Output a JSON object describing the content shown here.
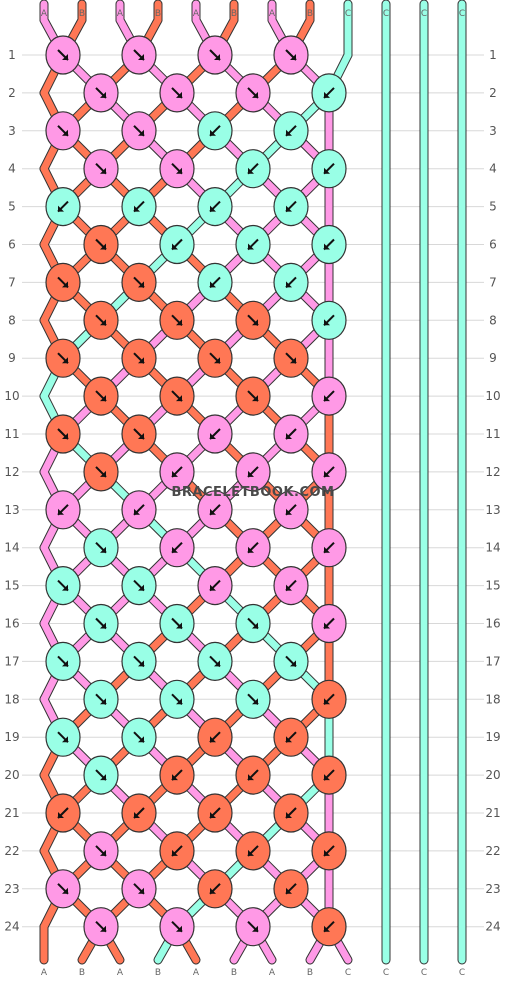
{
  "watermark": "BRACELETBOOK.COM",
  "colors": {
    "A": "#ff99e6",
    "B": "#ff7755",
    "C": "#99ffe6"
  },
  "strands_top": [
    "A",
    "B",
    "A",
    "B",
    "A",
    "B",
    "A",
    "B",
    "C",
    "C",
    "C",
    "C"
  ],
  "strands_bottom": [
    "A",
    "B",
    "A",
    "B",
    "A",
    "B",
    "A",
    "B",
    "C",
    "C",
    "C",
    "C"
  ],
  "row_labels": [
    "1",
    "2",
    "3",
    "4",
    "5",
    "6",
    "7",
    "8",
    "9",
    "10",
    "11",
    "12",
    "13",
    "14",
    "15",
    "16",
    "17",
    "18",
    "19",
    "20",
    "21",
    "22",
    "23",
    "24"
  ],
  "knot_rows": [
    [
      {
        "c": "A",
        "d": "se"
      },
      {
        "c": "A",
        "d": "se"
      },
      {
        "c": "A",
        "d": "se"
      },
      {
        "c": "A",
        "d": "se"
      }
    ],
    [
      {
        "c": "A",
        "d": "se"
      },
      {
        "c": "A",
        "d": "se"
      },
      {
        "c": "A",
        "d": "se"
      },
      {
        "c": "C",
        "d": "sw"
      }
    ],
    [
      {
        "c": "A",
        "d": "se"
      },
      {
        "c": "A",
        "d": "se"
      },
      {
        "c": "C",
        "d": "sw"
      },
      {
        "c": "C",
        "d": "sw"
      }
    ],
    [
      {
        "c": "A",
        "d": "se"
      },
      {
        "c": "A",
        "d": "se"
      },
      {
        "c": "C",
        "d": "sw"
      },
      {
        "c": "C",
        "d": "sw"
      }
    ],
    [
      {
        "c": "C",
        "d": "sw"
      },
      {
        "c": "C",
        "d": "sw"
      },
      {
        "c": "C",
        "d": "sw"
      },
      {
        "c": "C",
        "d": "sw"
      }
    ],
    [
      {
        "c": "B",
        "d": "se"
      },
      {
        "c": "C",
        "d": "sw"
      },
      {
        "c": "C",
        "d": "sw"
      },
      {
        "c": "C",
        "d": "sw"
      }
    ],
    [
      {
        "c": "B",
        "d": "se"
      },
      {
        "c": "B",
        "d": "se"
      },
      {
        "c": "C",
        "d": "sw"
      },
      {
        "c": "C",
        "d": "sw"
      }
    ],
    [
      {
        "c": "B",
        "d": "se"
      },
      {
        "c": "B",
        "d": "se"
      },
      {
        "c": "B",
        "d": "se"
      },
      {
        "c": "C",
        "d": "sw"
      }
    ],
    [
      {
        "c": "B",
        "d": "se"
      },
      {
        "c": "B",
        "d": "se"
      },
      {
        "c": "B",
        "d": "se"
      },
      {
        "c": "B",
        "d": "se"
      }
    ],
    [
      {
        "c": "B",
        "d": "se"
      },
      {
        "c": "B",
        "d": "se"
      },
      {
        "c": "B",
        "d": "se"
      },
      {
        "c": "A",
        "d": "sw"
      }
    ],
    [
      {
        "c": "B",
        "d": "se"
      },
      {
        "c": "B",
        "d": "se"
      },
      {
        "c": "A",
        "d": "sw"
      },
      {
        "c": "A",
        "d": "sw"
      }
    ],
    [
      {
        "c": "B",
        "d": "se"
      },
      {
        "c": "A",
        "d": "sw"
      },
      {
        "c": "A",
        "d": "sw"
      },
      {
        "c": "A",
        "d": "sw"
      }
    ],
    [
      {
        "c": "A",
        "d": "sw"
      },
      {
        "c": "A",
        "d": "sw"
      },
      {
        "c": "A",
        "d": "sw"
      },
      {
        "c": "A",
        "d": "sw"
      }
    ],
    [
      {
        "c": "C",
        "d": "se"
      },
      {
        "c": "A",
        "d": "sw"
      },
      {
        "c": "A",
        "d": "sw"
      },
      {
        "c": "A",
        "d": "sw"
      }
    ],
    [
      {
        "c": "C",
        "d": "se"
      },
      {
        "c": "C",
        "d": "se"
      },
      {
        "c": "A",
        "d": "sw"
      },
      {
        "c": "A",
        "d": "sw"
      }
    ],
    [
      {
        "c": "C",
        "d": "se"
      },
      {
        "c": "C",
        "d": "se"
      },
      {
        "c": "C",
        "d": "se"
      },
      {
        "c": "A",
        "d": "sw"
      }
    ],
    [
      {
        "c": "C",
        "d": "se"
      },
      {
        "c": "C",
        "d": "se"
      },
      {
        "c": "C",
        "d": "se"
      },
      {
        "c": "C",
        "d": "se"
      }
    ],
    [
      {
        "c": "C",
        "d": "se"
      },
      {
        "c": "C",
        "d": "se"
      },
      {
        "c": "C",
        "d": "se"
      },
      {
        "c": "B",
        "d": "sw"
      }
    ],
    [
      {
        "c": "C",
        "d": "se"
      },
      {
        "c": "C",
        "d": "se"
      },
      {
        "c": "B",
        "d": "sw"
      },
      {
        "c": "B",
        "d": "sw"
      }
    ],
    [
      {
        "c": "C",
        "d": "se"
      },
      {
        "c": "B",
        "d": "sw"
      },
      {
        "c": "B",
        "d": "sw"
      },
      {
        "c": "B",
        "d": "sw"
      }
    ],
    [
      {
        "c": "B",
        "d": "sw"
      },
      {
        "c": "B",
        "d": "sw"
      },
      {
        "c": "B",
        "d": "sw"
      },
      {
        "c": "B",
        "d": "sw"
      }
    ],
    [
      {
        "c": "A",
        "d": "se"
      },
      {
        "c": "B",
        "d": "sw"
      },
      {
        "c": "B",
        "d": "sw"
      },
      {
        "c": "B",
        "d": "sw"
      }
    ],
    [
      {
        "c": "A",
        "d": "se"
      },
      {
        "c": "A",
        "d": "se"
      },
      {
        "c": "B",
        "d": "sw"
      },
      {
        "c": "B",
        "d": "sw"
      }
    ],
    [
      {
        "c": "A",
        "d": "se"
      },
      {
        "c": "A",
        "d": "se"
      },
      {
        "c": "A",
        "d": "se"
      },
      {
        "c": "B",
        "d": "sw"
      }
    ]
  ]
}
